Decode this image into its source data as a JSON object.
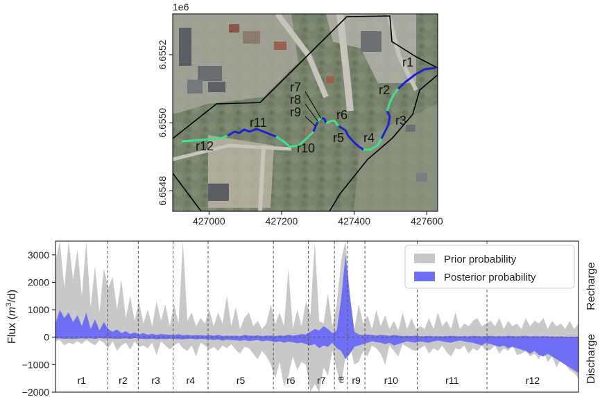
{
  "chart_data": [
    {
      "type": "map",
      "x_offset_text": "",
      "y_offset_text": "1e6",
      "xticks": [
        427000,
        427200,
        427400,
        427600
      ],
      "yticks": [
        6.6548,
        6.655,
        6.6552
      ],
      "xticks_text": [
        "427000",
        "427200",
        "427400",
        "427600"
      ],
      "yticks_text": [
        "6.6548",
        "6.6550",
        "6.6552"
      ],
      "xlim": [
        426900,
        427630
      ],
      "ylim": [
        6.65474,
        6.65532
      ],
      "reach_labels": [
        "r1",
        "r2",
        "r3",
        "r4",
        "r5",
        "r6",
        "r7",
        "r8",
        "r9",
        "r10",
        "r11",
        "r12"
      ],
      "colors": {
        "dark_reach": "#1f1fd6",
        "light_reach": "#3ee28a",
        "boundary": "#000000"
      }
    },
    {
      "type": "area",
      "ylabel": "Flux (m³/d)",
      "ylabel_main": "Flux (",
      "ylabel_m": "m",
      "ylabel_sup": "3",
      "ylabel_end": "/d)",
      "ylim": [
        -2000,
        3500
      ],
      "yticks": [
        -2000,
        -1000,
        0,
        1000,
        2000,
        3000
      ],
      "yticks_text": [
        "−2000",
        "−1000",
        "0",
        "1000",
        "2000",
        "3000"
      ],
      "right_labels": [
        "Recharge",
        "Discharge"
      ],
      "segments": [
        "r1",
        "r2",
        "r3",
        "r4",
        "r5",
        "r6",
        "r7",
        "r8",
        "r9",
        "r10",
        "r11",
        "r12"
      ],
      "segment_bounds": [
        0,
        12,
        19,
        27,
        35,
        50,
        58,
        64,
        67,
        71,
        83,
        99,
        120
      ],
      "legend": [
        {
          "name": "Prior probability",
          "color": "#c8c8c8"
        },
        {
          "name": "Posterior probability",
          "color": "#6f6ff5"
        }
      ],
      "legend_position": "top-right",
      "series": [
        {
          "name": "Prior probability",
          "upper": [
            2800,
            3500,
            1800,
            3500,
            2100,
            3200,
            1500,
            3500,
            1100,
            2600,
            900,
            2500,
            1800,
            2200,
            1000,
            2100,
            700,
            1500,
            600,
            1300,
            500,
            1000,
            400,
            1300,
            600,
            1200,
            400,
            1200,
            500,
            3500,
            600,
            900,
            400,
            700,
            500,
            1000,
            400,
            900,
            500,
            1500,
            400,
            1100,
            300,
            700,
            900,
            400,
            600,
            300,
            500,
            1200,
            500,
            900,
            400,
            2500,
            300,
            1000,
            400,
            1300,
            800,
            3500,
            600,
            500,
            1600,
            400,
            1200,
            2800,
            3500,
            1500,
            300,
            1200,
            500,
            800,
            300,
            1000,
            400,
            800,
            300,
            600,
            250,
            900,
            300,
            700,
            300,
            400,
            300,
            700,
            300,
            900,
            400,
            600,
            300,
            900,
            300,
            500,
            400,
            600,
            700,
            400,
            500,
            600,
            400,
            700,
            300,
            600,
            400,
            500,
            300,
            700,
            400,
            600,
            500,
            700,
            300,
            600,
            400,
            500,
            300,
            600,
            300,
            500
          ],
          "lower": [
            -150,
            -100,
            -300,
            -200,
            -250,
            -150,
            -250,
            -100,
            -200,
            -300,
            -100,
            -200,
            -400,
            -150,
            -500,
            -300,
            -200,
            -450,
            -150,
            -350,
            -300,
            -400,
            -200,
            -650,
            -150,
            -300,
            -450,
            -300,
            -200,
            -400,
            -500,
            -300,
            -700,
            -200,
            -300,
            -450,
            -350,
            -500,
            -300,
            -400,
            -250,
            -450,
            -600,
            -350,
            -400,
            -600,
            -800,
            -500,
            -700,
            -1000,
            -1500,
            -900,
            -1800,
            -1400,
            -700,
            -1200,
            -900,
            -1000,
            -2000,
            -1700,
            -2000,
            -1100,
            -1400,
            -500,
            -1200,
            -1700,
            -700,
            -300,
            -1000,
            -900,
            -500,
            -700,
            -300,
            -400,
            -600,
            -1000,
            -300,
            -500,
            -700,
            -250,
            -350,
            -450,
            -500,
            -400,
            -300,
            -600,
            -400,
            -500,
            -300,
            -550,
            -700,
            -400,
            -450,
            -300,
            -600,
            -400,
            -500,
            -300,
            -500,
            -450,
            -300,
            -600,
            -400,
            -500,
            -300,
            -650,
            -600,
            -500,
            -700,
            -600,
            -800,
            -500,
            -900,
            -700,
            -1100,
            -800,
            -1000,
            -1200,
            -1300,
            -1500
          ]
        },
        {
          "name": "Posterior probability",
          "upper": [
            500,
            1000,
            700,
            900,
            550,
            800,
            400,
            900,
            300,
            650,
            250,
            550,
            300,
            200,
            280,
            150,
            220,
            120,
            180,
            100,
            150,
            90,
            130,
            80,
            120,
            100,
            90,
            80,
            110,
            70,
            90,
            60,
            80,
            70,
            60,
            80,
            50,
            90,
            40,
            60,
            50,
            60,
            40,
            80,
            60,
            50,
            70,
            40,
            60,
            60,
            40,
            70,
            50,
            90,
            60,
            80,
            120,
            100,
            200,
            300,
            250,
            400,
            300,
            150,
            250,
            1400,
            3000,
            1500,
            200,
            100,
            80,
            100,
            80,
            60,
            90,
            70,
            50,
            80,
            60,
            40,
            50,
            40,
            60,
            30,
            40,
            50,
            30,
            40,
            30,
            40,
            50,
            40,
            30,
            40,
            30,
            50,
            40,
            30,
            40,
            50,
            30,
            40,
            30,
            50,
            40,
            30,
            40,
            50,
            30,
            40,
            30,
            40,
            30,
            30,
            20,
            30,
            20,
            20,
            20,
            20
          ],
          "lower": [
            -50,
            -40,
            -60,
            -50,
            -60,
            -50,
            -40,
            -50,
            -40,
            -60,
            -30,
            -50,
            -40,
            -50,
            -60,
            -50,
            -40,
            -60,
            -30,
            -50,
            -60,
            -70,
            -50,
            -80,
            -60,
            -70,
            -50,
            -60,
            -70,
            -80,
            -60,
            -50,
            -80,
            -60,
            -70,
            -80,
            -100,
            -80,
            -120,
            -90,
            -100,
            -110,
            -130,
            -100,
            -140,
            -120,
            -100,
            -150,
            -120,
            -140,
            -180,
            -150,
            -200,
            -160,
            -180,
            -220,
            -200,
            -250,
            -300,
            -250,
            -400,
            -300,
            -350,
            -200,
            -400,
            -500,
            -800,
            -600,
            -350,
            -300,
            -250,
            -200,
            -150,
            -180,
            -200,
            -250,
            -200,
            -300,
            -250,
            -200,
            -150,
            -180,
            -200,
            -150,
            -180,
            -200,
            -150,
            -120,
            -150,
            -180,
            -200,
            -150,
            -120,
            -150,
            -180,
            -200,
            -250,
            -300,
            -200,
            -250,
            -300,
            -350,
            -300,
            -400,
            -350,
            -400,
            -450,
            -500,
            -600,
            -500,
            -650,
            -700,
            -600,
            -700,
            -800,
            -900,
            -1000,
            -1100,
            -1200,
            -1300
          ]
        }
      ]
    }
  ]
}
